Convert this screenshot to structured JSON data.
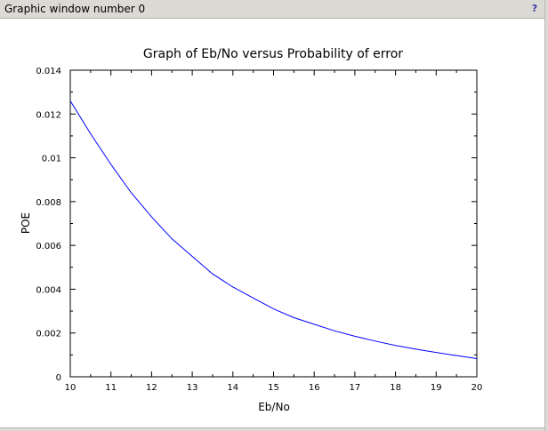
{
  "window": {
    "title": "Graphic window number 0",
    "help_icon": "question-icon",
    "help_label": "?"
  },
  "chart_data": {
    "type": "line",
    "title": "Graph of Eb/No versus Probability of error",
    "xlabel": "Eb/No",
    "ylabel": "POE",
    "xlim": [
      10,
      20
    ],
    "ylim": [
      0,
      0.014
    ],
    "xticks": [
      "10",
      "11",
      "12",
      "13",
      "14",
      "15",
      "16",
      "17",
      "18",
      "19",
      "20"
    ],
    "yticks": [
      "0",
      "0.002",
      "0.004",
      "0.006",
      "0.008",
      "0.01",
      "0.012",
      "0.014"
    ],
    "grid": false,
    "line_color": "#0000ff",
    "series": [
      {
        "x": [
          10,
          10.5,
          11,
          11.5,
          12,
          12.5,
          13,
          13.5,
          14,
          14.5,
          15,
          15.5,
          16,
          16.5,
          17,
          17.5,
          18,
          18.5,
          19,
          19.5,
          20
        ],
        "values": [
          0.0126,
          0.0111,
          0.0097,
          0.0084,
          0.0073,
          0.0063,
          0.0055,
          0.0047,
          0.0041,
          0.0036,
          0.0031,
          0.0027,
          0.0024,
          0.0021,
          0.00185,
          0.00163,
          0.00143,
          0.00126,
          0.00111,
          0.00097,
          0.00083
        ]
      }
    ]
  }
}
